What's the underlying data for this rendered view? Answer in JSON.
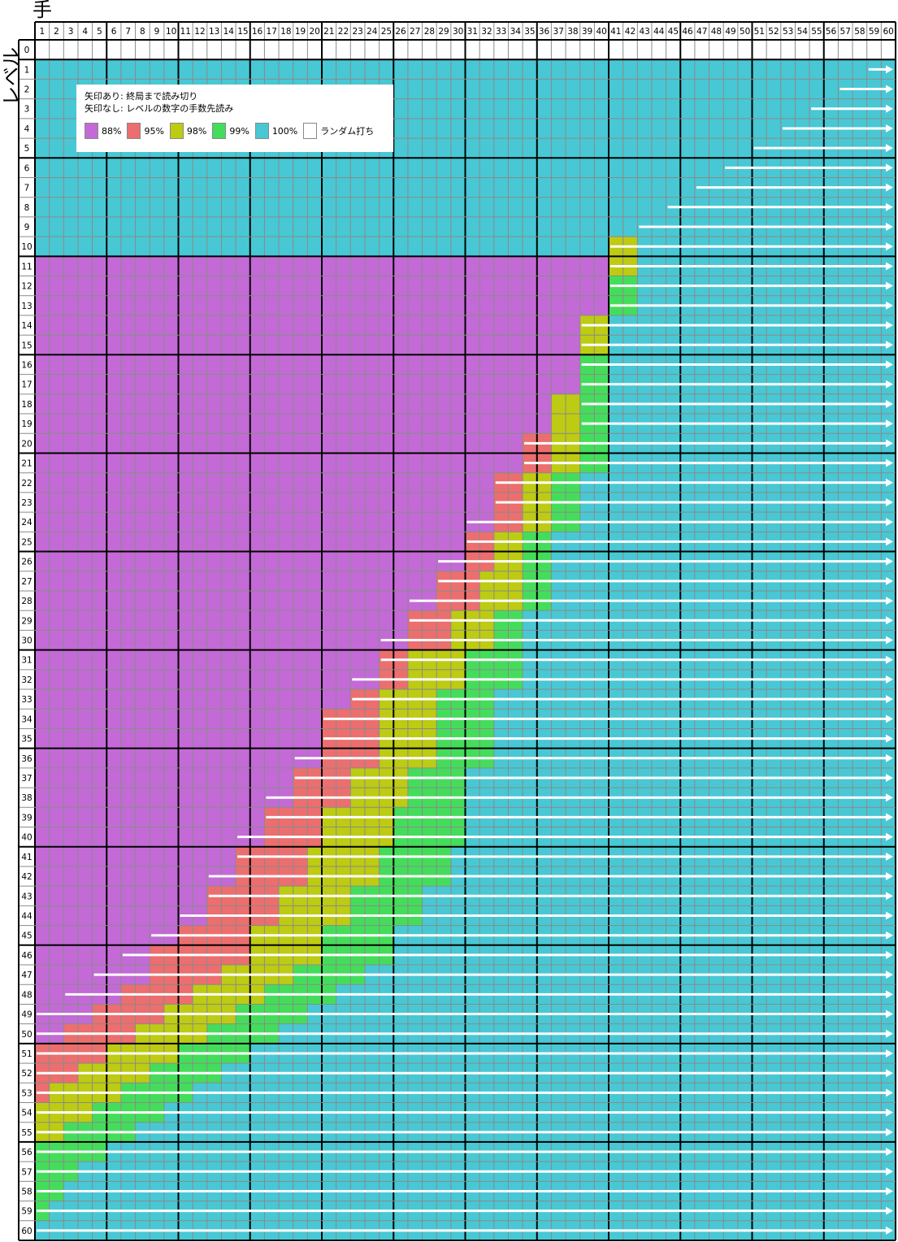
{
  "x_axis_title": "手",
  "y_axis_title": "レベル",
  "colors": {
    "88%": "#c36ad6",
    "95%": "#ec6e6e",
    "98%": "#bdcb12",
    "99%": "#44dd5b",
    "100%": "#48c8d4",
    "random": "#ffffff",
    "grid_line": "#8a8a8a",
    "arrow": "#ffffff"
  },
  "legend": {
    "note_arrow": "矢印あり: 終局まで読み切り",
    "note_no_arrow": "矢印なし: レベルの数字の手数先読み",
    "items": [
      {
        "key": "88%",
        "label": "88%",
        "color": "#c36ad6"
      },
      {
        "key": "95%",
        "label": "95%",
        "color": "#ec6e6e"
      },
      {
        "key": "98%",
        "label": "98%",
        "color": "#bdcb12"
      },
      {
        "key": "99%",
        "label": "99%",
        "color": "#44dd5b"
      },
      {
        "key": "100%",
        "label": "100%",
        "color": "#48c8d4"
      },
      {
        "key": "random",
        "label": "ランダム打ち",
        "color": "#ffffff"
      }
    ]
  },
  "chart_data": {
    "type": "heatmap",
    "xlabel": "手",
    "ylabel": "レベル",
    "x_range": [
      1,
      60
    ],
    "y_range": [
      0,
      60
    ],
    "x_ticks": [
      1,
      2,
      3,
      4,
      5,
      6,
      7,
      8,
      9,
      10,
      11,
      12,
      13,
      14,
      15,
      16,
      17,
      18,
      19,
      20,
      21,
      22,
      23,
      24,
      25,
      26,
      27,
      28,
      29,
      30,
      31,
      32,
      33,
      34,
      35,
      36,
      37,
      38,
      39,
      40,
      41,
      42,
      43,
      44,
      45,
      46,
      47,
      48,
      49,
      50,
      51,
      52,
      53,
      54,
      55,
      56,
      57,
      58,
      59,
      60
    ],
    "y_ticks": [
      0,
      1,
      2,
      3,
      4,
      5,
      6,
      7,
      8,
      9,
      10,
      11,
      12,
      13,
      14,
      15,
      16,
      17,
      18,
      19,
      20,
      21,
      22,
      23,
      24,
      25,
      26,
      27,
      28,
      29,
      30,
      31,
      32,
      33,
      34,
      35,
      36,
      37,
      38,
      39,
      40,
      41,
      42,
      43,
      44,
      45,
      46,
      47,
      48,
      49,
      50,
      51,
      52,
      53,
      54,
      55,
      56,
      57,
      58,
      59,
      60
    ],
    "row_segments_note": "each row lists [color_key, from_move, to_move] segments; level 0 is all random (white)",
    "rows": {
      "0": [
        [
          "random",
          1,
          60
        ]
      ],
      "1": [
        [
          "100%",
          1,
          60
        ]
      ],
      "2": [
        [
          "100%",
          1,
          60
        ]
      ],
      "3": [
        [
          "100%",
          1,
          60
        ]
      ],
      "4": [
        [
          "100%",
          1,
          60
        ]
      ],
      "5": [
        [
          "100%",
          1,
          60
        ]
      ],
      "6": [
        [
          "100%",
          1,
          60
        ]
      ],
      "7": [
        [
          "100%",
          1,
          60
        ]
      ],
      "8": [
        [
          "100%",
          1,
          60
        ]
      ],
      "9": [
        [
          "100%",
          1,
          60
        ]
      ],
      "10": [
        [
          "100%",
          1,
          40
        ],
        [
          "98%",
          41,
          42
        ],
        [
          "100%",
          43,
          60
        ]
      ],
      "11": [
        [
          "88%",
          1,
          40
        ],
        [
          "98%",
          41,
          42
        ],
        [
          "100%",
          43,
          60
        ]
      ],
      "12": [
        [
          "88%",
          1,
          40
        ],
        [
          "99%",
          41,
          42
        ],
        [
          "100%",
          43,
          60
        ]
      ],
      "13": [
        [
          "88%",
          1,
          40
        ],
        [
          "99%",
          41,
          42
        ],
        [
          "100%",
          43,
          60
        ]
      ],
      "14": [
        [
          "88%",
          1,
          38
        ],
        [
          "98%",
          39,
          40
        ],
        [
          "100%",
          41,
          60
        ]
      ],
      "15": [
        [
          "88%",
          1,
          38
        ],
        [
          "98%",
          39,
          40
        ],
        [
          "100%",
          41,
          60
        ]
      ],
      "16": [
        [
          "88%",
          1,
          38
        ],
        [
          "99%",
          39,
          40
        ],
        [
          "100%",
          41,
          60
        ]
      ],
      "17": [
        [
          "88%",
          1,
          38
        ],
        [
          "99%",
          39,
          40
        ],
        [
          "100%",
          41,
          60
        ]
      ],
      "18": [
        [
          "88%",
          1,
          36
        ],
        [
          "98%",
          37,
          38
        ],
        [
          "99%",
          39,
          40
        ],
        [
          "100%",
          41,
          60
        ]
      ],
      "19": [
        [
          "88%",
          1,
          36
        ],
        [
          "98%",
          37,
          38
        ],
        [
          "99%",
          39,
          40
        ],
        [
          "100%",
          41,
          60
        ]
      ],
      "20": [
        [
          "88%",
          1,
          34
        ],
        [
          "95%",
          35,
          36
        ],
        [
          "98%",
          37,
          38
        ],
        [
          "99%",
          39,
          40
        ],
        [
          "100%",
          41,
          60
        ]
      ],
      "21": [
        [
          "88%",
          1,
          34
        ],
        [
          "95%",
          35,
          36
        ],
        [
          "98%",
          37,
          38
        ],
        [
          "99%",
          39,
          40
        ],
        [
          "100%",
          41,
          60
        ]
      ],
      "22": [
        [
          "88%",
          1,
          32
        ],
        [
          "95%",
          33,
          34
        ],
        [
          "98%",
          35,
          36
        ],
        [
          "99%",
          37,
          38
        ],
        [
          "100%",
          39,
          60
        ]
      ],
      "23": [
        [
          "88%",
          1,
          32
        ],
        [
          "95%",
          33,
          34
        ],
        [
          "98%",
          35,
          36
        ],
        [
          "99%",
          37,
          38
        ],
        [
          "100%",
          39,
          60
        ]
      ],
      "24": [
        [
          "88%",
          1,
          32
        ],
        [
          "95%",
          33,
          34
        ],
        [
          "98%",
          35,
          36
        ],
        [
          "99%",
          37,
          38
        ],
        [
          "100%",
          39,
          60
        ]
      ],
      "25": [
        [
          "88%",
          1,
          30
        ],
        [
          "95%",
          31,
          32
        ],
        [
          "98%",
          33,
          34
        ],
        [
          "99%",
          35,
          36
        ],
        [
          "100%",
          37,
          60
        ]
      ],
      "26": [
        [
          "88%",
          1,
          30
        ],
        [
          "95%",
          31,
          32
        ],
        [
          "98%",
          33,
          34
        ],
        [
          "99%",
          35,
          36
        ],
        [
          "100%",
          37,
          60
        ]
      ],
      "27": [
        [
          "88%",
          1,
          28
        ],
        [
          "95%",
          29,
          31
        ],
        [
          "98%",
          32,
          34
        ],
        [
          "99%",
          35,
          36
        ],
        [
          "100%",
          37,
          60
        ]
      ],
      "28": [
        [
          "88%",
          1,
          28
        ],
        [
          "95%",
          29,
          31
        ],
        [
          "98%",
          32,
          34
        ],
        [
          "99%",
          35,
          36
        ],
        [
          "100%",
          37,
          60
        ]
      ],
      "29": [
        [
          "88%",
          1,
          26
        ],
        [
          "95%",
          27,
          29
        ],
        [
          "98%",
          30,
          32
        ],
        [
          "99%",
          33,
          34
        ],
        [
          "100%",
          35,
          60
        ]
      ],
      "30": [
        [
          "88%",
          1,
          26
        ],
        [
          "95%",
          27,
          29
        ],
        [
          "98%",
          30,
          32
        ],
        [
          "99%",
          33,
          34
        ],
        [
          "100%",
          35,
          60
        ]
      ],
      "31": [
        [
          "88%",
          1,
          24
        ],
        [
          "95%",
          25,
          26
        ],
        [
          "98%",
          27,
          30
        ],
        [
          "99%",
          31,
          34
        ],
        [
          "100%",
          35,
          60
        ]
      ],
      "32": [
        [
          "88%",
          1,
          24
        ],
        [
          "95%",
          25,
          26
        ],
        [
          "98%",
          27,
          30
        ],
        [
          "99%",
          31,
          34
        ],
        [
          "100%",
          35,
          60
        ]
      ],
      "33": [
        [
          "88%",
          1,
          22
        ],
        [
          "95%",
          23,
          24
        ],
        [
          "98%",
          25,
          28
        ],
        [
          "99%",
          29,
          32
        ],
        [
          "100%",
          33,
          60
        ]
      ],
      "34": [
        [
          "88%",
          1,
          20
        ],
        [
          "95%",
          21,
          24
        ],
        [
          "98%",
          25,
          28
        ],
        [
          "99%",
          29,
          32
        ],
        [
          "100%",
          33,
          60
        ]
      ],
      "35": [
        [
          "88%",
          1,
          20
        ],
        [
          "95%",
          21,
          24
        ],
        [
          "98%",
          25,
          28
        ],
        [
          "99%",
          29,
          32
        ],
        [
          "100%",
          33,
          60
        ]
      ],
      "36": [
        [
          "88%",
          1,
          20
        ],
        [
          "95%",
          21,
          24
        ],
        [
          "98%",
          25,
          28
        ],
        [
          "99%",
          29,
          32
        ],
        [
          "100%",
          33,
          60
        ]
      ],
      "37": [
        [
          "88%",
          1,
          18
        ],
        [
          "95%",
          19,
          22
        ],
        [
          "98%",
          23,
          26
        ],
        [
          "99%",
          27,
          30
        ],
        [
          "100%",
          31,
          60
        ]
      ],
      "38": [
        [
          "88%",
          1,
          18
        ],
        [
          "95%",
          19,
          22
        ],
        [
          "98%",
          23,
          26
        ],
        [
          "99%",
          27,
          30
        ],
        [
          "100%",
          31,
          60
        ]
      ],
      "39": [
        [
          "88%",
          1,
          16
        ],
        [
          "95%",
          17,
          20
        ],
        [
          "98%",
          21,
          25
        ],
        [
          "99%",
          26,
          30
        ],
        [
          "100%",
          31,
          60
        ]
      ],
      "40": [
        [
          "88%",
          1,
          16
        ],
        [
          "95%",
          17,
          20
        ],
        [
          "98%",
          21,
          25
        ],
        [
          "99%",
          26,
          30
        ],
        [
          "100%",
          31,
          60
        ]
      ],
      "41": [
        [
          "88%",
          1,
          14
        ],
        [
          "95%",
          15,
          19
        ],
        [
          "98%",
          20,
          24
        ],
        [
          "99%",
          25,
          29
        ],
        [
          "100%",
          30,
          60
        ]
      ],
      "42": [
        [
          "88%",
          1,
          14
        ],
        [
          "95%",
          15,
          19
        ],
        [
          "98%",
          20,
          24
        ],
        [
          "99%",
          25,
          29
        ],
        [
          "100%",
          30,
          60
        ]
      ],
      "43": [
        [
          "88%",
          1,
          12
        ],
        [
          "95%",
          13,
          17
        ],
        [
          "98%",
          18,
          22
        ],
        [
          "99%",
          23,
          27
        ],
        [
          "100%",
          28,
          60
        ]
      ],
      "44": [
        [
          "88%",
          1,
          12
        ],
        [
          "95%",
          13,
          17
        ],
        [
          "98%",
          18,
          22
        ],
        [
          "99%",
          23,
          27
        ],
        [
          "100%",
          28,
          60
        ]
      ],
      "45": [
        [
          "88%",
          1,
          10
        ],
        [
          "95%",
          11,
          15
        ],
        [
          "98%",
          16,
          20
        ],
        [
          "99%",
          21,
          25
        ],
        [
          "100%",
          26,
          60
        ]
      ],
      "46": [
        [
          "88%",
          1,
          8
        ],
        [
          "95%",
          9,
          15
        ],
        [
          "98%",
          16,
          20
        ],
        [
          "99%",
          21,
          25
        ],
        [
          "100%",
          26,
          60
        ]
      ],
      "47": [
        [
          "88%",
          1,
          8
        ],
        [
          "95%",
          9,
          13
        ],
        [
          "98%",
          14,
          18
        ],
        [
          "99%",
          19,
          23
        ],
        [
          "100%",
          24,
          60
        ]
      ],
      "48": [
        [
          "88%",
          1,
          6
        ],
        [
          "95%",
          7,
          11
        ],
        [
          "98%",
          12,
          16
        ],
        [
          "99%",
          17,
          21
        ],
        [
          "100%",
          22,
          60
        ]
      ],
      "49": [
        [
          "88%",
          1,
          4
        ],
        [
          "95%",
          5,
          9
        ],
        [
          "98%",
          10,
          14
        ],
        [
          "99%",
          15,
          19
        ],
        [
          "100%",
          20,
          60
        ]
      ],
      "50": [
        [
          "88%",
          1,
          2
        ],
        [
          "95%",
          3,
          7
        ],
        [
          "98%",
          8,
          12
        ],
        [
          "99%",
          13,
          17
        ],
        [
          "100%",
          18,
          60
        ]
      ],
      "51": [
        [
          "95%",
          1,
          5
        ],
        [
          "98%",
          6,
          10
        ],
        [
          "99%",
          11,
          15
        ],
        [
          "100%",
          16,
          60
        ]
      ],
      "52": [
        [
          "95%",
          1,
          3
        ],
        [
          "98%",
          4,
          8
        ],
        [
          "99%",
          9,
          13
        ],
        [
          "100%",
          14,
          60
        ]
      ],
      "53": [
        [
          "95%",
          1,
          1
        ],
        [
          "98%",
          2,
          6
        ],
        [
          "99%",
          7,
          11
        ],
        [
          "100%",
          12,
          60
        ]
      ],
      "54": [
        [
          "98%",
          1,
          4
        ],
        [
          "99%",
          5,
          9
        ],
        [
          "100%",
          10,
          60
        ]
      ],
      "55": [
        [
          "98%",
          1,
          2
        ],
        [
          "99%",
          3,
          7
        ],
        [
          "100%",
          8,
          60
        ]
      ],
      "56": [
        [
          "99%",
          1,
          5
        ],
        [
          "100%",
          6,
          60
        ]
      ],
      "57": [
        [
          "99%",
          1,
          3
        ],
        [
          "100%",
          4,
          60
        ]
      ],
      "58": [
        [
          "99%",
          1,
          2
        ],
        [
          "100%",
          3,
          60
        ]
      ],
      "59": [
        [
          "99%",
          1,
          1
        ],
        [
          "100%",
          2,
          60
        ]
      ],
      "60": [
        [
          "100%",
          1,
          60
        ]
      ]
    },
    "arrow_note": "arrow = 終局まで読み切り (perfect play to end); arrow starts at the listed move and runs to move 60",
    "arrow_start_move": {
      "1": 59,
      "2": 57,
      "3": 55,
      "4": 53,
      "5": 51,
      "6": 49,
      "7": 47,
      "8": 45,
      "9": 43,
      "10": 41,
      "11": 41,
      "12": 41,
      "13": 41,
      "14": 39,
      "15": 39,
      "16": 39,
      "17": 39,
      "18": 39,
      "19": 39,
      "20": 35,
      "21": 35,
      "22": 33,
      "23": 33,
      "24": 31,
      "25": 31,
      "26": 29,
      "27": 29,
      "28": 27,
      "29": 27,
      "30": 25,
      "31": 25,
      "32": 23,
      "33": 23,
      "34": 21,
      "35": 21,
      "36": 19,
      "37": 19,
      "38": 17,
      "39": 17,
      "40": 15,
      "41": 15,
      "42": 13,
      "43": 13,
      "44": 11,
      "45": 9,
      "46": 7,
      "47": 5,
      "48": 3,
      "49": 1,
      "50": 1,
      "51": 1,
      "52": 1,
      "53": 1,
      "54": 1,
      "55": 1,
      "56": 1,
      "57": 1,
      "58": 1,
      "59": 1,
      "60": 1
    }
  }
}
